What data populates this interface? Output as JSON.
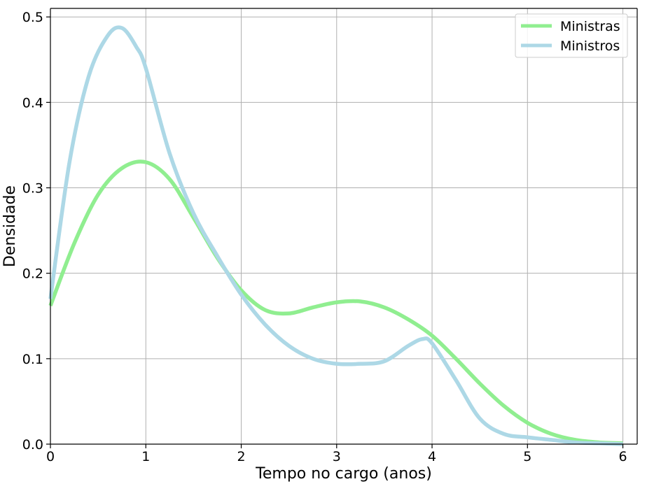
{
  "chart_data": {
    "type": "line",
    "xlabel": "Tempo no cargo (anos)",
    "ylabel": "Densidade",
    "xlim": [
      0,
      6.15
    ],
    "ylim": [
      0,
      0.51
    ],
    "xticks": [
      0,
      1,
      2,
      3,
      4,
      5,
      6
    ],
    "yticks": [
      0.0,
      0.1,
      0.2,
      0.3,
      0.4,
      0.5
    ],
    "xtick_labels": [
      "0",
      "1",
      "2",
      "3",
      "4",
      "5",
      "6"
    ],
    "ytick_labels": [
      "0.0",
      "0.1",
      "0.2",
      "0.3",
      "0.4",
      "0.5"
    ],
    "grid": true,
    "legend": "top-right",
    "series": [
      {
        "name": "Ministras",
        "color": "#90ee90",
        "x": [
          0,
          0.25,
          0.5,
          0.75,
          1.0,
          1.25,
          1.5,
          1.75,
          2.0,
          2.25,
          2.5,
          2.75,
          3.0,
          3.25,
          3.5,
          3.75,
          4.0,
          4.25,
          4.5,
          4.75,
          5.0,
          5.25,
          5.5,
          5.75,
          6.0
        ],
        "y": [
          0.162,
          0.235,
          0.292,
          0.323,
          0.33,
          0.31,
          0.265,
          0.218,
          0.18,
          0.157,
          0.153,
          0.16,
          0.166,
          0.167,
          0.16,
          0.146,
          0.127,
          0.1,
          0.071,
          0.045,
          0.025,
          0.012,
          0.005,
          0.002,
          0.001
        ]
      },
      {
        "name": "Ministros",
        "color": "#add8e6",
        "x": [
          0,
          0.2,
          0.4,
          0.6,
          0.75,
          0.9,
          1.0,
          1.25,
          1.5,
          1.75,
          2.0,
          2.25,
          2.5,
          2.75,
          3.0,
          3.25,
          3.5,
          3.75,
          3.9,
          4.0,
          4.25,
          4.5,
          4.75,
          5.0,
          5.25,
          5.5,
          5.75,
          6.0
        ],
        "y": [
          0.17,
          0.33,
          0.43,
          0.478,
          0.487,
          0.465,
          0.44,
          0.34,
          0.27,
          0.22,
          0.175,
          0.14,
          0.115,
          0.1,
          0.094,
          0.094,
          0.097,
          0.115,
          0.123,
          0.118,
          0.075,
          0.03,
          0.012,
          0.008,
          0.005,
          0.002,
          0.001,
          0.0
        ]
      }
    ]
  }
}
